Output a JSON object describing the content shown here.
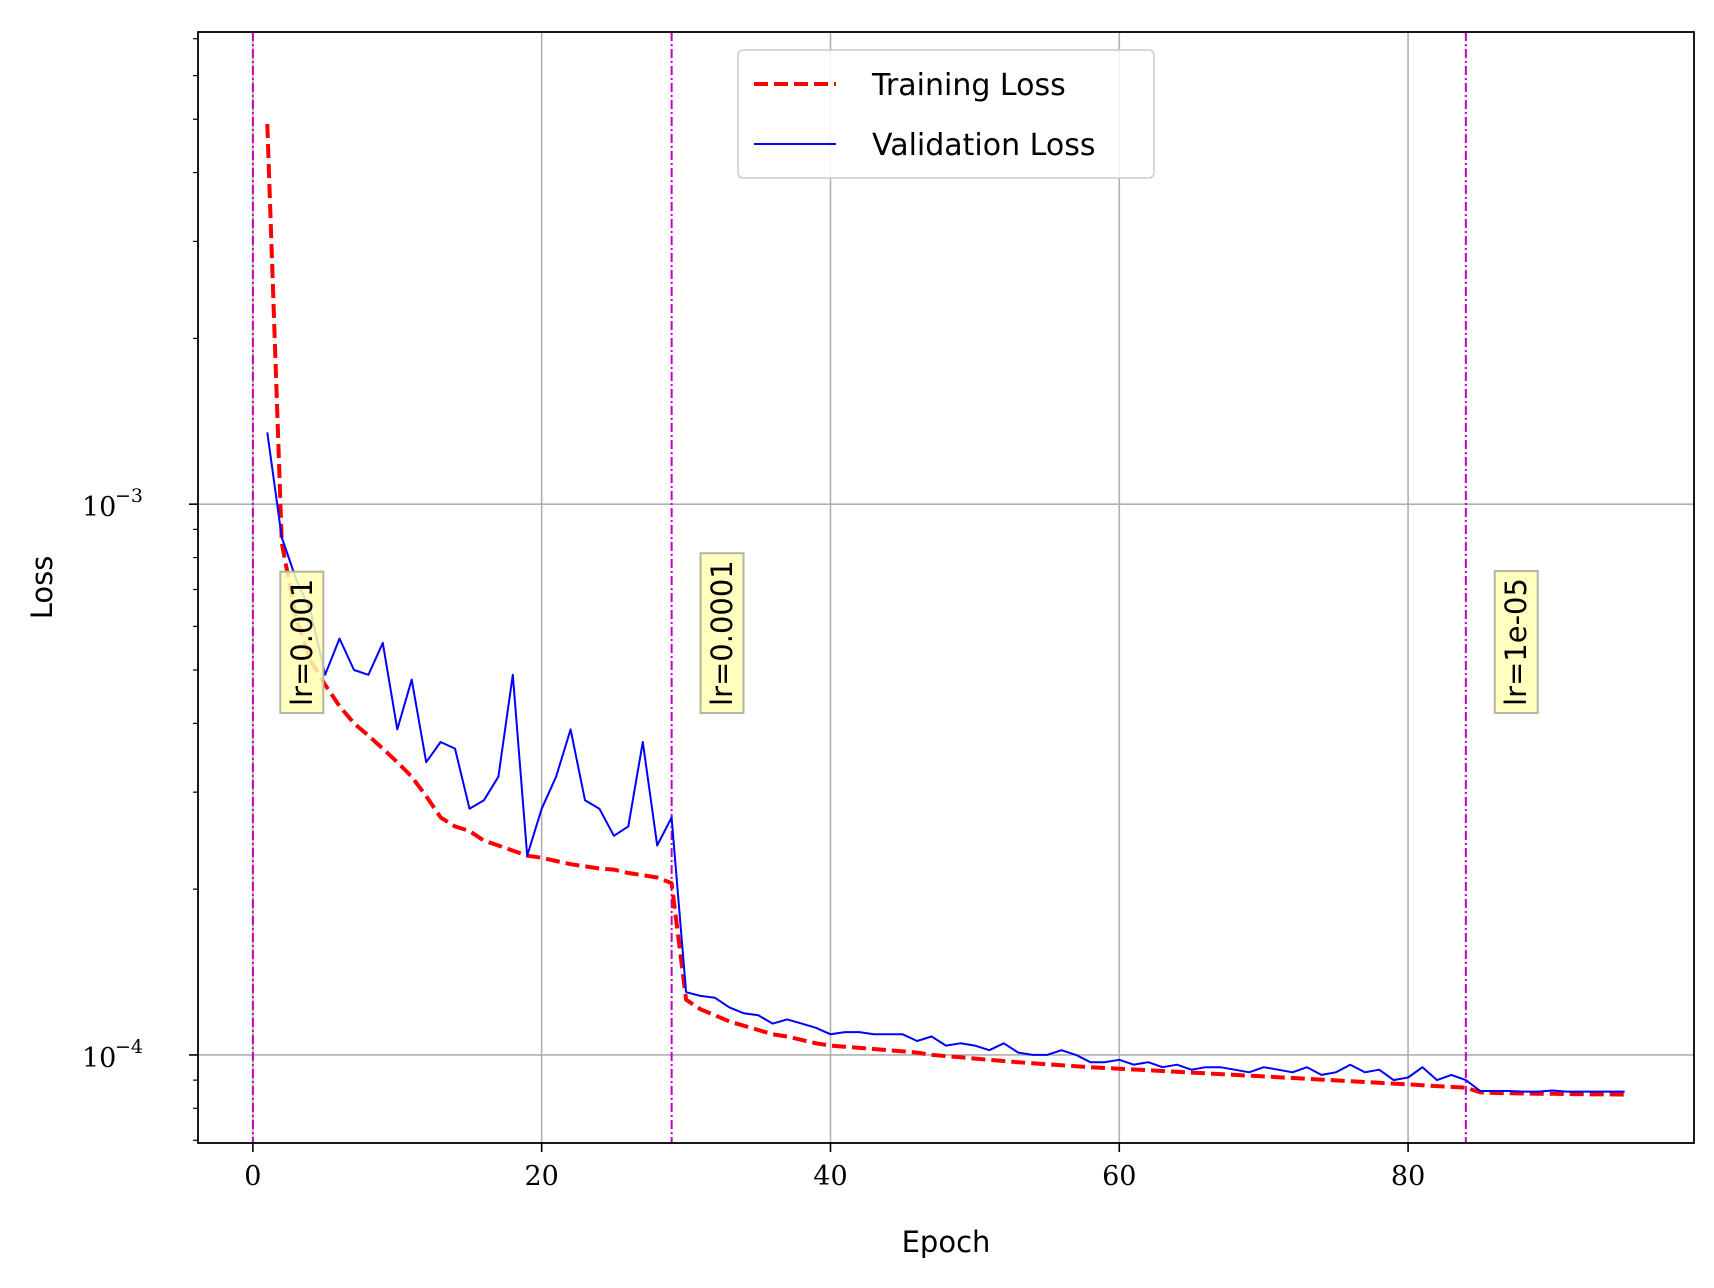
{
  "chart_data": {
    "type": "line",
    "xlabel": "Epoch",
    "ylabel": "Loss",
    "xlim": [
      -3.8,
      99.8
    ],
    "ylim": [
      6.92e-05,
      0.0072
    ],
    "yscale": "log",
    "grid": true,
    "legend_position": "top-center",
    "x_ticks": [
      0,
      20,
      40,
      60,
      80
    ],
    "y_ticks": [
      {
        "value": 0.001,
        "base": "10",
        "exp": "−3"
      },
      {
        "value": 0.0001,
        "base": "10",
        "exp": "−4"
      }
    ],
    "series": [
      {
        "name": "Training Loss",
        "color": "#ff0000",
        "style": "dashed",
        "x": [
          1,
          2,
          3,
          4,
          5,
          6,
          7,
          8,
          9,
          10,
          11,
          12,
          13,
          14,
          15,
          16,
          17,
          18,
          19,
          20,
          21,
          22,
          23,
          24,
          25,
          26,
          27,
          28,
          29,
          30,
          31,
          32,
          33,
          34,
          35,
          36,
          37,
          38,
          39,
          40,
          41,
          42,
          43,
          44,
          45,
          46,
          47,
          48,
          49,
          50,
          51,
          52,
          53,
          54,
          55,
          56,
          57,
          58,
          59,
          60,
          61,
          62,
          63,
          64,
          65,
          66,
          67,
          68,
          69,
          70,
          71,
          72,
          73,
          74,
          75,
          76,
          77,
          78,
          79,
          80,
          81,
          82,
          83,
          84,
          85,
          86,
          87,
          88,
          89,
          90,
          91,
          92,
          93,
          94,
          95
        ],
        "values": [
          0.0049,
          0.00085,
          0.00062,
          0.00052,
          0.00047,
          0.00043,
          0.0004,
          0.00038,
          0.00036,
          0.00034,
          0.00032,
          0.000295,
          0.00027,
          0.00026,
          0.000255,
          0.000245,
          0.00024,
          0.000235,
          0.00023,
          0.000228,
          0.000225,
          0.000222,
          0.00022,
          0.000218,
          0.000217,
          0.000214,
          0.000212,
          0.00021,
          0.000205,
          0.000126,
          0.000121,
          0.000118,
          0.000115,
          0.000113,
          0.000111,
          0.000109,
          0.000108,
          0.0001065,
          0.000105,
          0.000104,
          0.0001035,
          0.000103,
          0.0001025,
          0.000102,
          0.0001015,
          0.000101,
          0.0001,
          9.95e-05,
          9.9e-05,
          9.85e-05,
          9.8e-05,
          9.75e-05,
          9.7e-05,
          9.66e-05,
          9.62e-05,
          9.58e-05,
          9.54e-05,
          9.5e-05,
          9.47e-05,
          9.44e-05,
          9.41e-05,
          9.38e-05,
          9.35e-05,
          9.32e-05,
          9.29e-05,
          9.26e-05,
          9.23e-05,
          9.2e-05,
          9.17e-05,
          9.14e-05,
          9.11e-05,
          9.08e-05,
          9.05e-05,
          9.02e-05,
          8.99e-05,
          8.96e-05,
          8.93e-05,
          8.9e-05,
          8.87e-05,
          8.84e-05,
          8.81e-05,
          8.78e-05,
          8.75e-05,
          8.72e-05,
          8.55e-05,
          8.53e-05,
          8.52e-05,
          8.51e-05,
          8.5e-05,
          8.5e-05,
          8.49e-05,
          8.49e-05,
          8.48e-05,
          8.48e-05,
          8.47e-05
        ]
      },
      {
        "name": "Validation Loss",
        "color": "#0000ff",
        "style": "solid",
        "x": [
          1,
          2,
          3,
          4,
          5,
          6,
          7,
          8,
          9,
          10,
          11,
          12,
          13,
          14,
          15,
          16,
          17,
          18,
          19,
          20,
          21,
          22,
          23,
          24,
          25,
          26,
          27,
          28,
          29,
          30,
          31,
          32,
          33,
          34,
          35,
          36,
          37,
          38,
          39,
          40,
          41,
          42,
          43,
          44,
          45,
          46,
          47,
          48,
          49,
          50,
          51,
          52,
          53,
          54,
          55,
          56,
          57,
          58,
          59,
          60,
          61,
          62,
          63,
          64,
          65,
          66,
          67,
          68,
          69,
          70,
          71,
          72,
          73,
          74,
          75,
          76,
          77,
          78,
          79,
          80,
          81,
          82,
          83,
          84,
          85,
          86,
          87,
          88,
          89,
          90,
          91,
          92,
          93,
          94,
          95
        ],
        "values": [
          0.00135,
          0.00087,
          0.00073,
          0.00064,
          0.00049,
          0.00057,
          0.0005,
          0.00049,
          0.00056,
          0.00039,
          0.00048,
          0.00034,
          0.00037,
          0.00036,
          0.00028,
          0.00029,
          0.00032,
          0.00049,
          0.00023,
          0.00028,
          0.00032,
          0.00039,
          0.00029,
          0.00028,
          0.00025,
          0.00026,
          0.00037,
          0.00024,
          0.00027,
          0.00013,
          0.000128,
          0.000127,
          0.000122,
          0.000119,
          0.000118,
          0.000114,
          0.000116,
          0.000114,
          0.000112,
          0.000109,
          0.00011,
          0.00011,
          0.000109,
          0.000109,
          0.000109,
          0.000106,
          0.000108,
          0.000104,
          0.000105,
          0.000104,
          0.000102,
          0.000105,
          0.000101,
          0.0001,
          0.0001,
          0.000102,
          0.0001,
          9.7e-05,
          9.7e-05,
          9.8e-05,
          9.6e-05,
          9.7e-05,
          9.5e-05,
          9.6e-05,
          9.4e-05,
          9.5e-05,
          9.5e-05,
          9.4e-05,
          9.3e-05,
          9.5e-05,
          9.4e-05,
          9.3e-05,
          9.5e-05,
          9.2e-05,
          9.3e-05,
          9.6e-05,
          9.3e-05,
          9.4e-05,
          9e-05,
          9.1e-05,
          9.5e-05,
          9e-05,
          9.2e-05,
          9e-05,
          8.6e-05,
          8.6e-05,
          8.6e-05,
          8.58e-05,
          8.58e-05,
          8.62e-05,
          8.58e-05,
          8.58e-05,
          8.58e-05,
          8.58e-05,
          8.58e-05
        ]
      }
    ],
    "vlines": [
      {
        "x": 0,
        "color": "#bf00bf",
        "style": "dashdot"
      },
      {
        "x": 29,
        "color": "#bf00bf",
        "style": "dashdot"
      },
      {
        "x": 84,
        "color": "#bf00bf",
        "style": "dashdot"
      }
    ],
    "annotations": [
      {
        "text": "lr=0.001",
        "x": 1.9,
        "y": 0.00075
      },
      {
        "text": "lr=0.0001",
        "x": 31.0,
        "y": 0.00075
      },
      {
        "text": "lr=1e-05",
        "x": 86.0,
        "y": 0.00075
      }
    ]
  }
}
